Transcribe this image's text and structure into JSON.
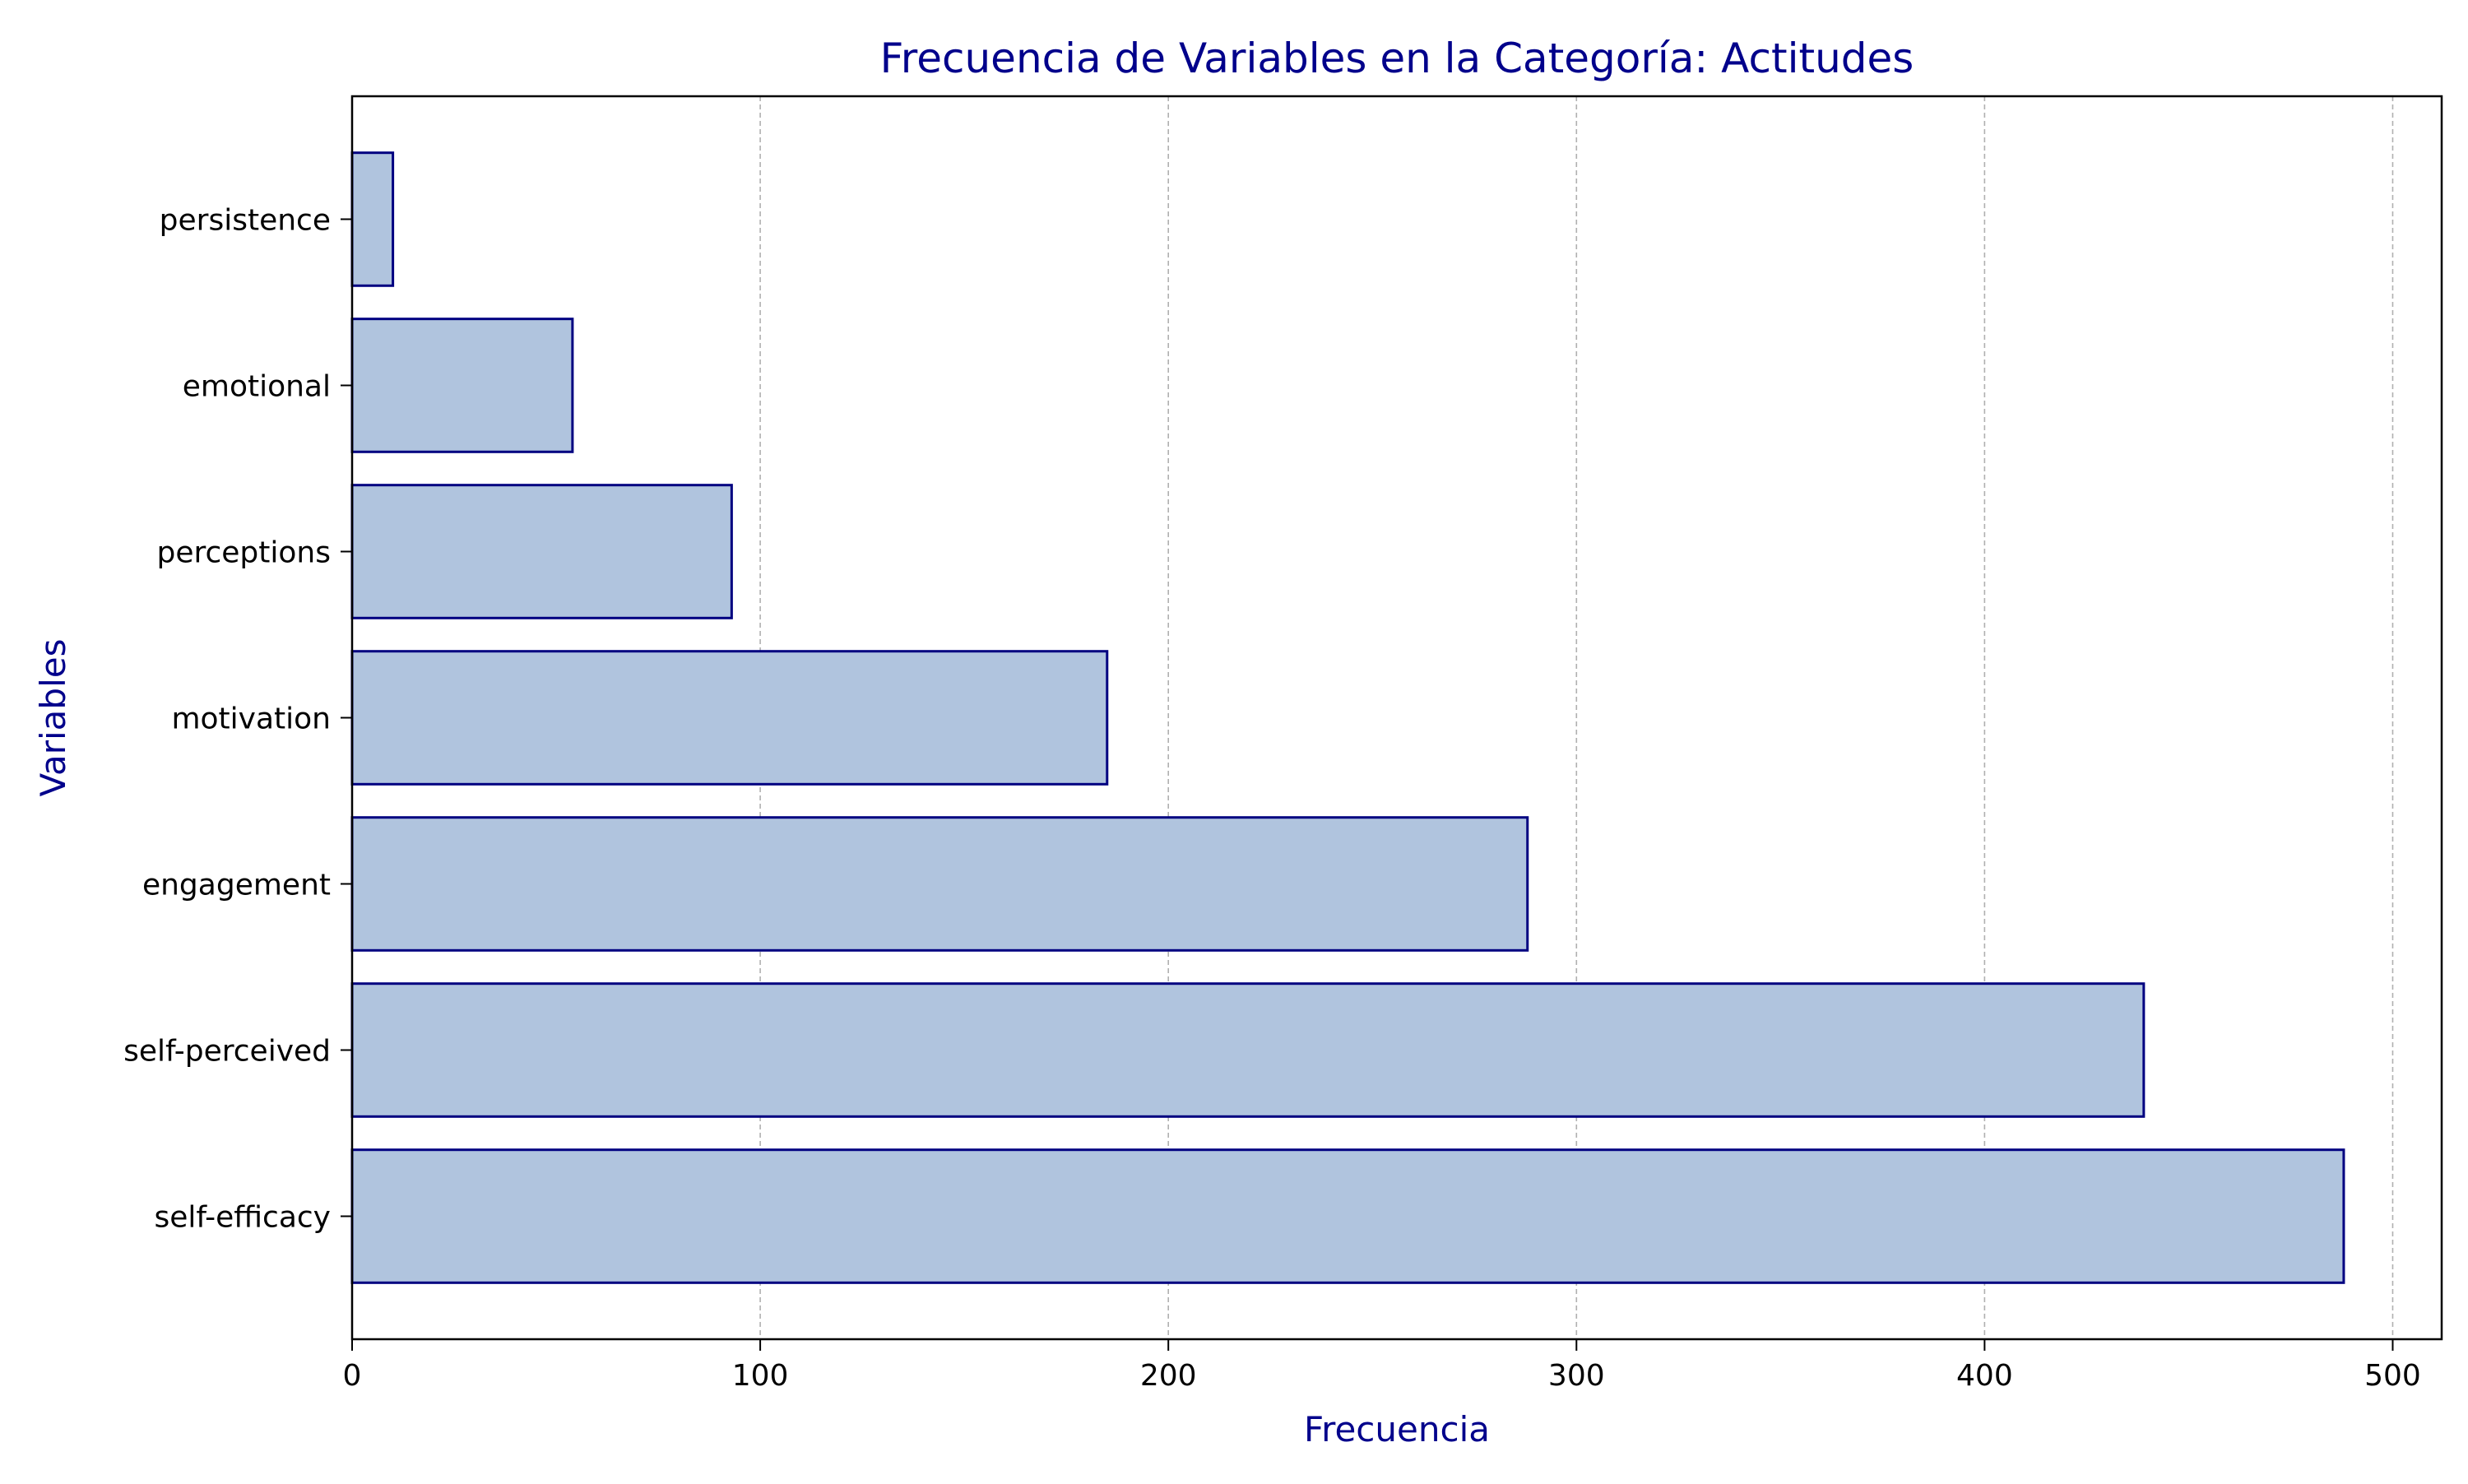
{
  "chart_data": {
    "type": "bar",
    "orientation": "horizontal",
    "title": "Frecuencia de Variables en la Categoría: Actitudes",
    "xlabel": "Frecuencia",
    "ylabel": "Variables",
    "categories": [
      "self-efficacy",
      "self-perceived",
      "engagement",
      "motivation",
      "perceptions",
      "emotional",
      "persistence"
    ],
    "values": [
      488,
      439,
      288,
      185,
      93,
      54,
      10
    ],
    "xlim": [
      0,
      512
    ],
    "xticks": [
      0,
      100,
      200,
      300,
      400,
      500
    ],
    "grid": "x-axis dashed",
    "legend": "none",
    "colors": {
      "bar_fill": "#b0c4de",
      "bar_edge": "#000080",
      "title": "#00008b",
      "axis_label": "#00008b",
      "grid": "#b0b0b0",
      "axes": "#000000"
    }
  }
}
